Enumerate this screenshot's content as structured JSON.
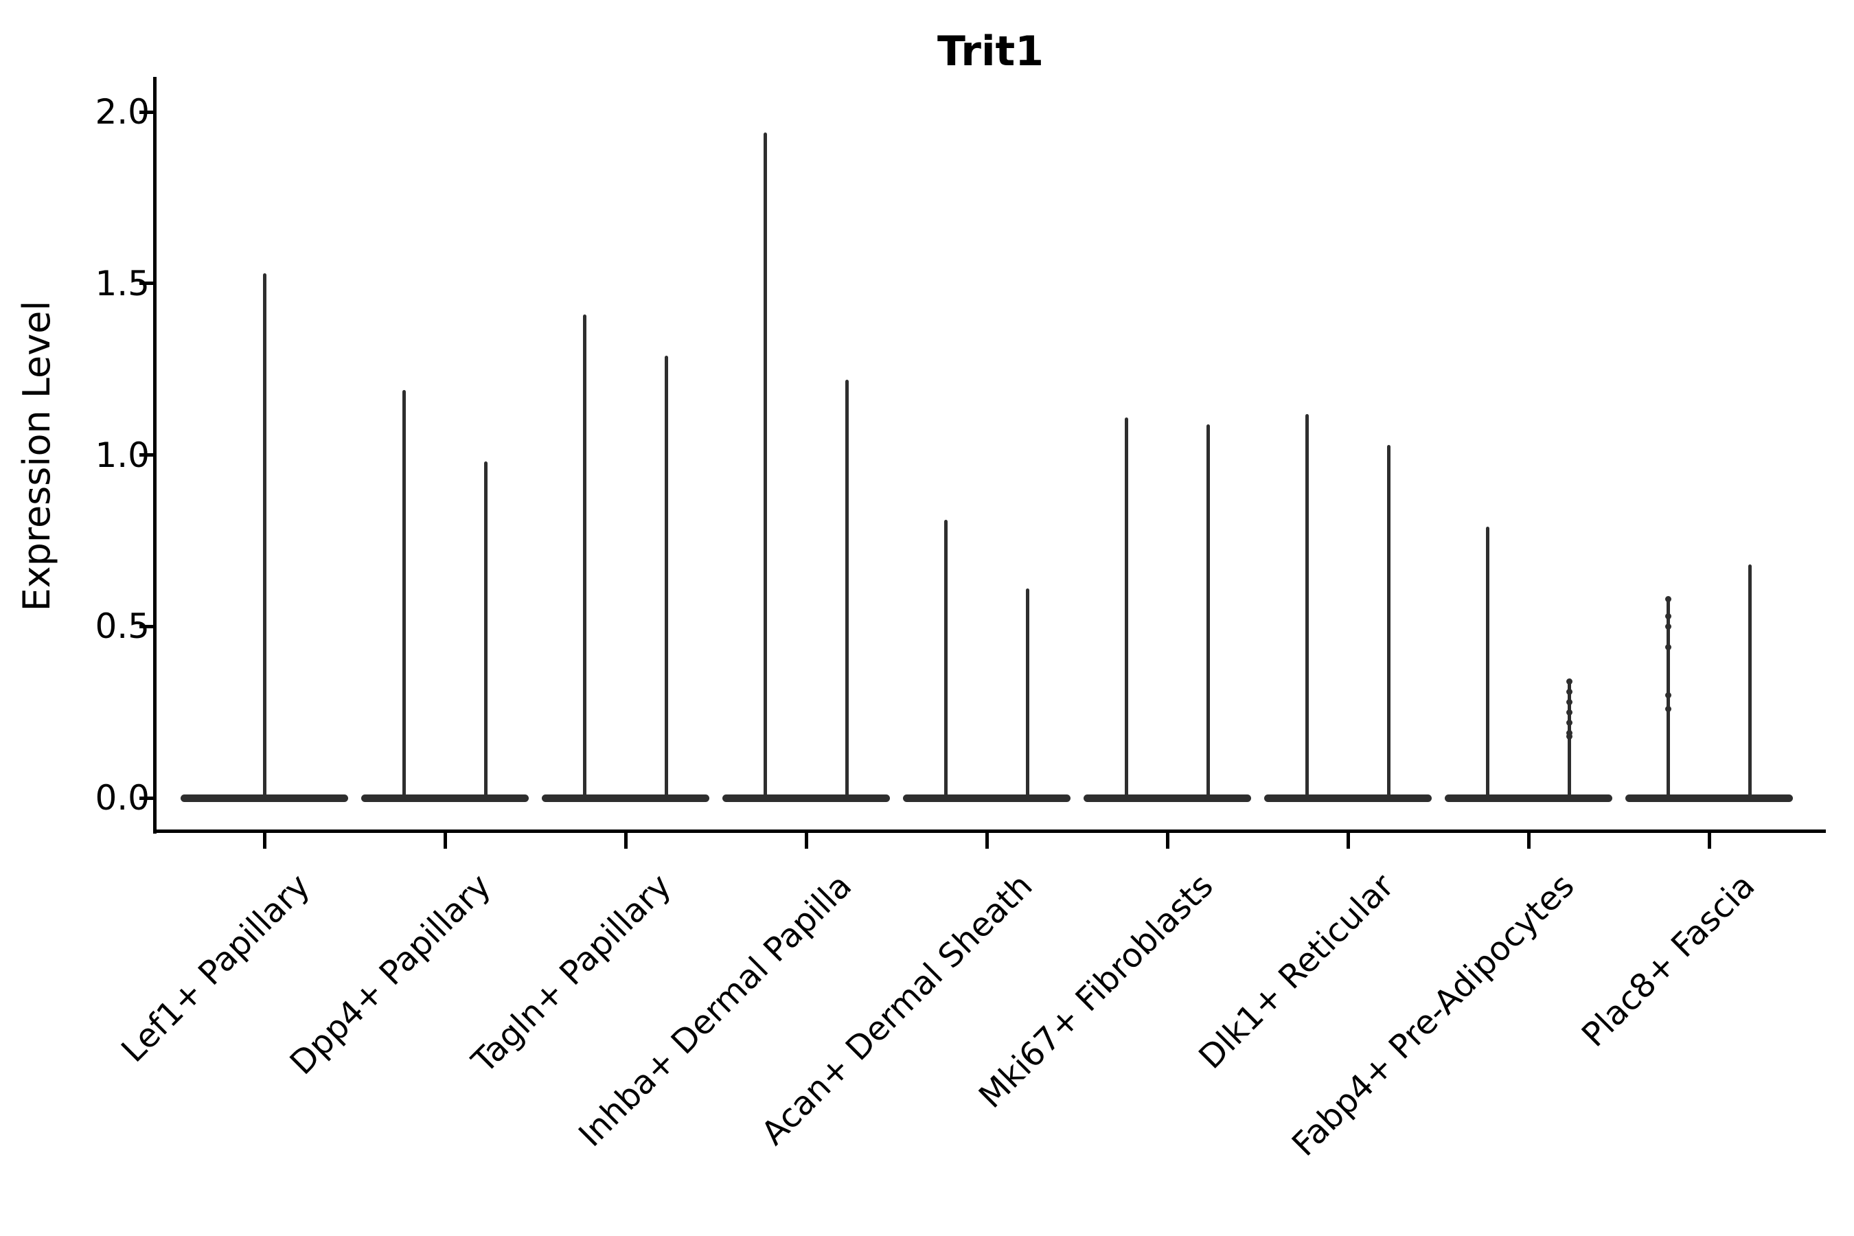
{
  "chart_data": {
    "type": "violin",
    "title": "Trit1",
    "ylabel": "Expression Level",
    "xlabel": "",
    "ylim": [
      -0.1,
      2.1
    ],
    "yticks": [
      {
        "value": 0.0,
        "label": "0.0"
      },
      {
        "value": 0.5,
        "label": "0.5"
      },
      {
        "value": 1.0,
        "label": "1.0"
      },
      {
        "value": 1.5,
        "label": "1.5"
      },
      {
        "value": 2.0,
        "label": "2.0"
      }
    ],
    "grid": false,
    "legend": "none",
    "violin_color": "#2e2e2e",
    "categories": [
      "Lef1+ Papillary",
      "Dpp4+ Papillary",
      "Tagln+ Papillary",
      "Inhba+ Dermal Papilla",
      "Acan+ Dermal Sheath",
      "Mki67+ Fibroblasts",
      "Dlk1+ Reticular",
      "Fabp4+ Pre-Adipocytes",
      "Plac8+ Fascia"
    ],
    "series": [
      {
        "category": "Lef1+ Papillary",
        "base_halfwidth_frac": 0.464,
        "spikes": [
          {
            "offset_frac": 0.0,
            "max": 1.53,
            "points": []
          }
        ]
      },
      {
        "category": "Dpp4+ Papillary",
        "base_halfwidth_frac": 0.464,
        "spikes": [
          {
            "offset_frac": -0.228,
            "max": 1.19,
            "points": []
          },
          {
            "offset_frac": 0.228,
            "max": 0.98,
            "points": []
          }
        ]
      },
      {
        "category": "Tagln+ Papillary",
        "base_halfwidth_frac": 0.464,
        "spikes": [
          {
            "offset_frac": -0.228,
            "max": 1.41,
            "points": []
          },
          {
            "offset_frac": 0.228,
            "max": 1.29,
            "points": []
          }
        ]
      },
      {
        "category": "Inhba+ Dermal Papilla",
        "base_halfwidth_frac": 0.464,
        "spikes": [
          {
            "offset_frac": -0.228,
            "max": 1.94,
            "points": []
          },
          {
            "offset_frac": 0.228,
            "max": 1.22,
            "points": []
          }
        ]
      },
      {
        "category": "Acan+ Dermal Sheath",
        "base_halfwidth_frac": 0.464,
        "spikes": [
          {
            "offset_frac": -0.228,
            "max": 0.81,
            "points": []
          },
          {
            "offset_frac": 0.228,
            "max": 0.61,
            "points": []
          }
        ]
      },
      {
        "category": "Mki67+ Fibroblasts",
        "base_halfwidth_frac": 0.464,
        "spikes": [
          {
            "offset_frac": -0.228,
            "max": 1.11,
            "points": []
          },
          {
            "offset_frac": 0.228,
            "max": 1.09,
            "points": []
          }
        ]
      },
      {
        "category": "Dlk1+ Reticular",
        "base_halfwidth_frac": 0.464,
        "spikes": [
          {
            "offset_frac": -0.228,
            "max": 1.12,
            "points": []
          },
          {
            "offset_frac": 0.228,
            "max": 1.03,
            "points": []
          }
        ]
      },
      {
        "category": "Fabp4+ Pre-Adipocytes",
        "base_halfwidth_frac": 0.464,
        "spikes": [
          {
            "offset_frac": -0.228,
            "max": 0.79,
            "points": []
          },
          {
            "offset_frac": 0.228,
            "max": 0.34,
            "points": [
              0.34,
              0.31,
              0.28,
              0.25,
              0.22,
              0.19,
              0.18
            ]
          }
        ]
      },
      {
        "category": "Plac8+ Fascia",
        "base_halfwidth_frac": 0.464,
        "spikes": [
          {
            "offset_frac": -0.228,
            "max": 0.58,
            "points": [
              0.58,
              0.53,
              0.5,
              0.44,
              0.3,
              0.26
            ]
          },
          {
            "offset_frac": 0.228,
            "max": 0.68,
            "points": []
          }
        ]
      }
    ]
  }
}
